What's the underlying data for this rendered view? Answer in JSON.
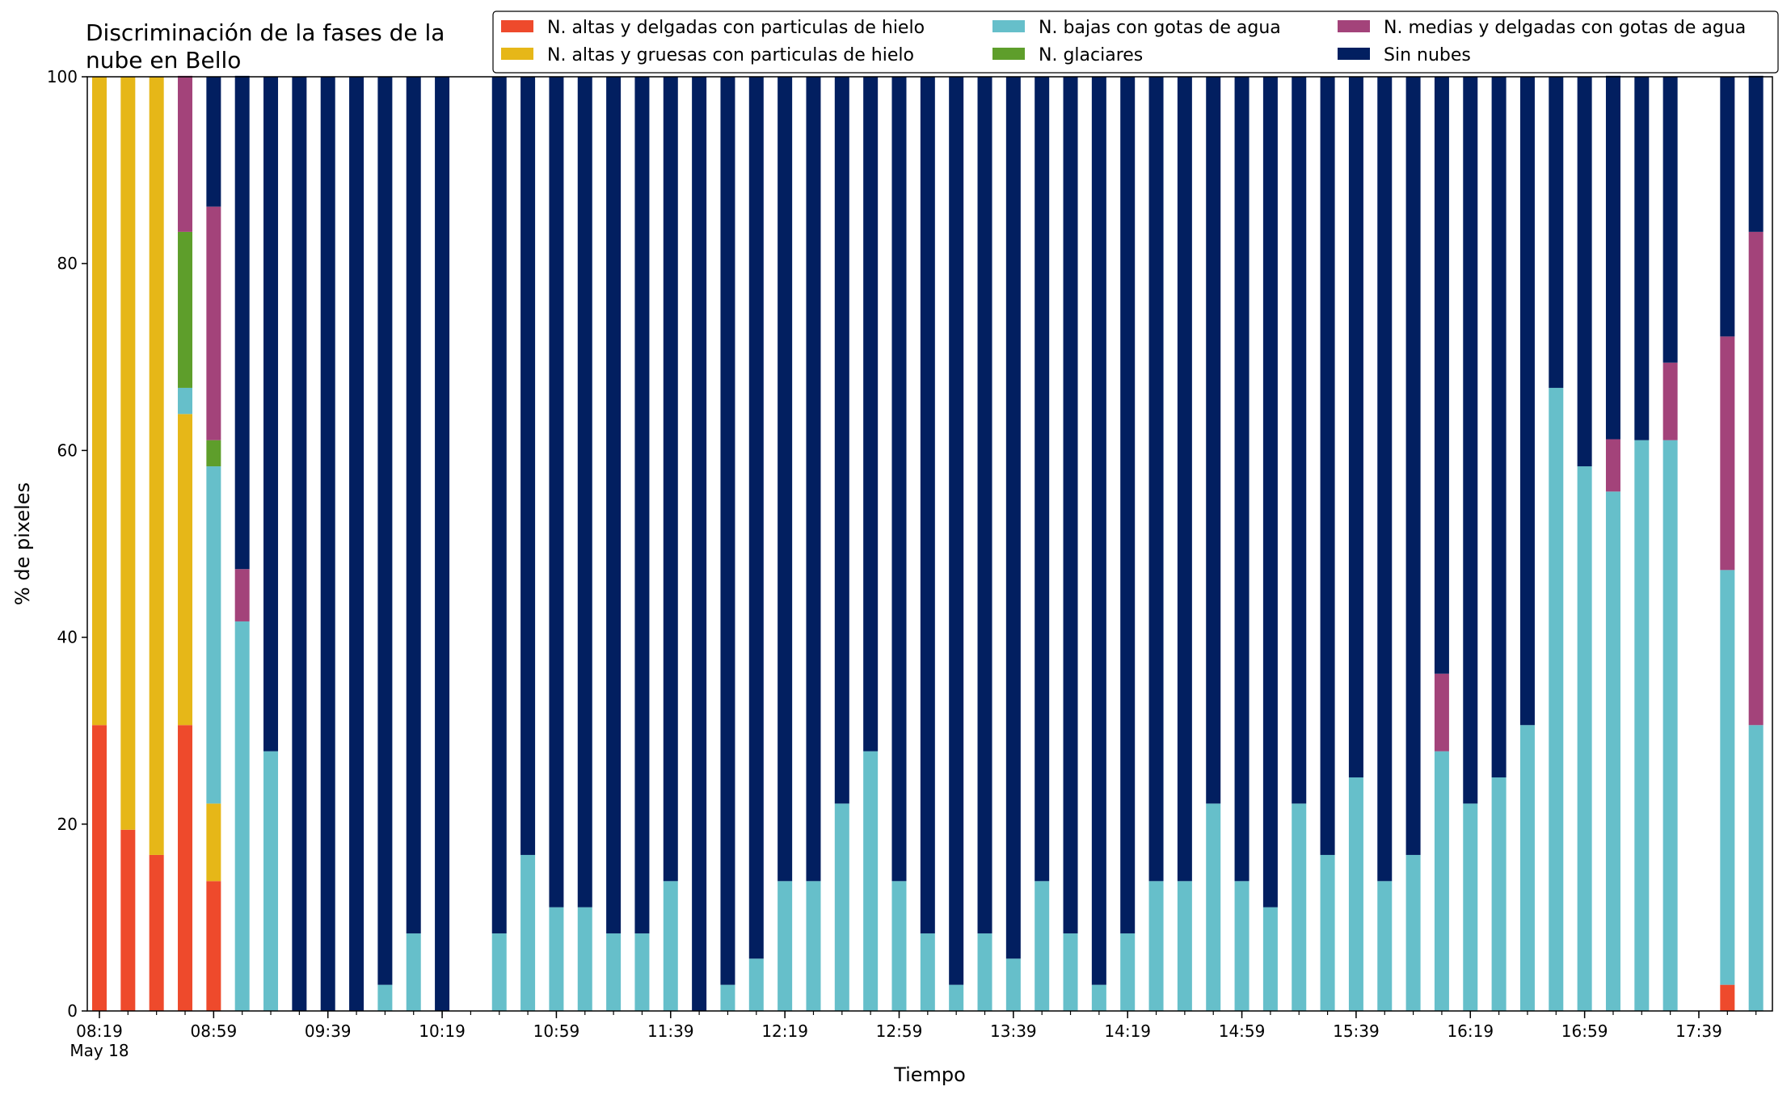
{
  "chart_data": {
    "type": "bar",
    "stacked": true,
    "title_lines": [
      "Discriminación de la fases de la",
      "nube en Bello"
    ],
    "xlabel": "Tiempo",
    "ylabel": "% de pixeles",
    "ylim": [
      0,
      100
    ],
    "yticks": [
      0,
      20,
      40,
      60,
      80,
      100
    ],
    "xticks": [
      {
        "slot": 0,
        "label": "08:19"
      },
      {
        "slot": 4,
        "label": "08:59"
      },
      {
        "slot": 8,
        "label": "09:39"
      },
      {
        "slot": 12,
        "label": "10:19"
      },
      {
        "slot": 16,
        "label": "10:59"
      },
      {
        "slot": 20,
        "label": "11:39"
      },
      {
        "slot": 24,
        "label": "12:19"
      },
      {
        "slot": 28,
        "label": "12:59"
      },
      {
        "slot": 32,
        "label": "13:39"
      },
      {
        "slot": 36,
        "label": "14:19"
      },
      {
        "slot": 40,
        "label": "14:59"
      },
      {
        "slot": 44,
        "label": "15:39"
      },
      {
        "slot": 48,
        "label": "16:19"
      },
      {
        "slot": 52,
        "label": "16:59"
      },
      {
        "slot": 56,
        "label": "17:39"
      }
    ],
    "xtick_sublabel": "May 18",
    "slot_count": 59,
    "legend_position": "top-right",
    "legend_columns": 3,
    "series": [
      {
        "name": "N. altas y delgadas con particulas de hielo",
        "color": "#EE4A2C",
        "values": [
          30.6,
          19.4,
          16.7,
          30.6,
          13.9,
          0,
          0,
          0,
          0,
          0,
          0,
          0,
          0,
          0,
          0,
          0,
          0,
          0,
          0,
          0,
          0,
          0,
          0,
          0,
          0,
          0,
          0,
          0,
          0,
          0,
          0,
          0,
          0,
          0,
          0,
          0,
          0,
          0,
          0,
          0,
          0,
          0,
          0,
          0,
          0,
          0,
          0,
          0,
          0,
          0,
          0,
          0,
          0,
          0,
          0,
          0,
          0,
          2.8,
          0
        ]
      },
      {
        "name": "N. altas y gruesas con particulas de hielo",
        "color": "#E6B718",
        "values": [
          69.4,
          80.6,
          83.3,
          33.3,
          8.3,
          0,
          0,
          0,
          0,
          0,
          0,
          0,
          0,
          0,
          0,
          0,
          0,
          0,
          0,
          0,
          0,
          0,
          0,
          0,
          0,
          0,
          0,
          0,
          0,
          0,
          0,
          0,
          0,
          0,
          0,
          0,
          0,
          0,
          0,
          0,
          0,
          0,
          0,
          0,
          0,
          0,
          0,
          0,
          0,
          0,
          0,
          0,
          0,
          0,
          0,
          0,
          0,
          0,
          0
        ]
      },
      {
        "name": "N. bajas con gotas de agua",
        "color": "#66BFCA",
        "values": [
          0,
          0,
          0,
          2.8,
          36.1,
          41.7,
          27.8,
          0,
          0,
          0,
          2.8,
          8.3,
          0,
          0,
          8.3,
          16.7,
          11.1,
          11.1,
          8.3,
          8.3,
          13.9,
          0,
          2.8,
          5.6,
          13.9,
          13.9,
          22.2,
          27.8,
          13.9,
          8.3,
          2.8,
          8.3,
          5.6,
          13.9,
          8.3,
          2.8,
          8.3,
          13.9,
          13.9,
          22.2,
          13.9,
          11.1,
          22.2,
          16.7,
          25,
          13.9,
          16.7,
          27.8,
          22.2,
          25,
          30.6,
          66.7,
          58.3,
          55.6,
          61.1,
          61.1,
          0,
          44.4,
          30.6
        ]
      },
      {
        "name": "N. glaciares",
        "color": "#5E9E2B",
        "values": [
          0,
          0,
          0,
          16.7,
          2.8,
          0,
          0,
          0,
          0,
          0,
          0,
          0,
          0,
          0,
          0,
          0,
          0,
          0,
          0,
          0,
          0,
          0,
          0,
          0,
          0,
          0,
          0,
          0,
          0,
          0,
          0,
          0,
          0,
          0,
          0,
          0,
          0,
          0,
          0,
          0,
          0,
          0,
          0,
          0,
          0,
          0,
          0,
          0,
          0,
          0,
          0,
          0,
          0,
          0,
          0,
          0,
          0,
          0,
          0
        ]
      },
      {
        "name": "N. medias y delgadas con gotas de agua",
        "color": "#A3437A",
        "values": [
          0,
          0,
          0,
          16.7,
          25,
          5.6,
          0,
          0,
          0,
          0,
          0,
          0,
          0,
          0,
          0,
          0,
          0,
          0,
          0,
          0,
          0,
          0,
          0,
          0,
          0,
          0,
          0,
          0,
          0,
          0,
          0,
          0,
          0,
          0,
          0,
          0,
          0,
          0,
          0,
          0,
          0,
          0,
          0,
          0,
          0,
          0,
          0,
          8.3,
          0,
          0,
          0,
          0,
          0,
          5.6,
          0,
          8.3,
          0,
          25,
          52.8
        ]
      },
      {
        "name": "Sin nubes",
        "color": "#021F60",
        "values": [
          0,
          0,
          0,
          0,
          13.9,
          52.8,
          72.2,
          100,
          100,
          100,
          97.2,
          91.7,
          100,
          0,
          91.7,
          83.3,
          88.9,
          88.9,
          91.7,
          91.7,
          86.1,
          100,
          97.2,
          94.4,
          86.1,
          86.1,
          77.8,
          72.2,
          86.1,
          91.7,
          97.2,
          91.7,
          94.4,
          86.1,
          91.7,
          97.2,
          91.7,
          86.1,
          86.1,
          77.8,
          86.1,
          88.9,
          77.8,
          83.3,
          75,
          86.1,
          83.3,
          63.9,
          77.8,
          75,
          69.4,
          33.3,
          41.7,
          38.9,
          38.9,
          30.6,
          0,
          27.8,
          16.7
        ]
      }
    ]
  }
}
